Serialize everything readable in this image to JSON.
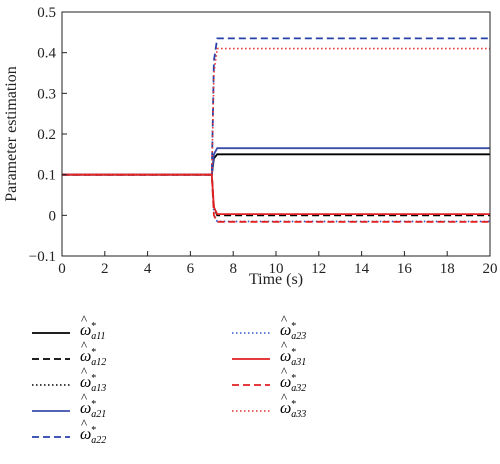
{
  "chart_data": {
    "type": "line",
    "xlabel": "Time (s)",
    "ylabel": "Parameter estimation",
    "xlim": [
      0,
      20
    ],
    "ylim": [
      -0.1,
      0.5
    ],
    "xticks": [
      "0",
      "2",
      "4",
      "6",
      "8",
      "10",
      "12",
      "14",
      "16",
      "18",
      "20"
    ],
    "yticks": [
      "−0.1",
      "0",
      "0.1",
      "0.2",
      "0.3",
      "0.4",
      "0.5"
    ],
    "grid": false,
    "legend_position": "below",
    "series": [
      {
        "name": "ω̂*a11",
        "sub": "a11",
        "color": "#000000",
        "dash": "solid",
        "x": [
          0,
          7,
          7.1,
          7.25,
          20
        ],
        "y": [
          0.1,
          0.1,
          0.14,
          0.15,
          0.15
        ]
      },
      {
        "name": "ω̂*a12",
        "sub": "a12",
        "color": "#000000",
        "dash": "dashed",
        "x": [
          0,
          7,
          7.1,
          7.25,
          20
        ],
        "y": [
          0.1,
          0.1,
          0.02,
          0.0,
          0.0
        ]
      },
      {
        "name": "ω̂*a13",
        "sub": "a13",
        "color": "#000000",
        "dash": "dotted",
        "x": [
          0,
          7,
          7.1,
          7.25,
          20
        ],
        "y": [
          0.1,
          0.1,
          0.14,
          0.15,
          0.15
        ]
      },
      {
        "name": "ω̂*a21",
        "sub": "a21",
        "color": "#3a4ea8",
        "dash": "solid",
        "x": [
          0,
          7,
          7.1,
          7.25,
          20
        ],
        "y": [
          0.1,
          0.1,
          0.15,
          0.165,
          0.165
        ]
      },
      {
        "name": "ω̂*a22",
        "sub": "a22",
        "color": "#2740a8",
        "dash": "dashed",
        "x": [
          0,
          7,
          7.1,
          7.25,
          20
        ],
        "y": [
          0.1,
          0.1,
          0.38,
          0.435,
          0.435
        ]
      },
      {
        "name": "ω̂*a23",
        "sub": "a23",
        "color": "#2f56d0",
        "dash": "dotted",
        "x": [
          0,
          7,
          7.1,
          7.25,
          20
        ],
        "y": [
          0.1,
          0.1,
          0.0,
          -0.015,
          -0.015
        ]
      },
      {
        "name": "ω̂*a31",
        "sub": "a31",
        "color": "#e02020",
        "dash": "solid",
        "x": [
          0,
          7,
          7.1,
          7.25,
          20
        ],
        "y": [
          0.1,
          0.1,
          0.02,
          0.003,
          0.003
        ]
      },
      {
        "name": "ω̂*a32",
        "sub": "a32",
        "color": "#e02020",
        "dash": "dashed",
        "x": [
          0,
          7,
          7.1,
          7.25,
          20
        ],
        "y": [
          0.1,
          0.1,
          0.0,
          -0.016,
          -0.016
        ]
      },
      {
        "name": "ω̂*a33",
        "sub": "a33",
        "color": "#f03030",
        "dash": "dotted",
        "x": [
          0,
          7,
          7.1,
          7.25,
          20
        ],
        "y": [
          0.1,
          0.1,
          0.35,
          0.41,
          0.41
        ]
      }
    ]
  }
}
